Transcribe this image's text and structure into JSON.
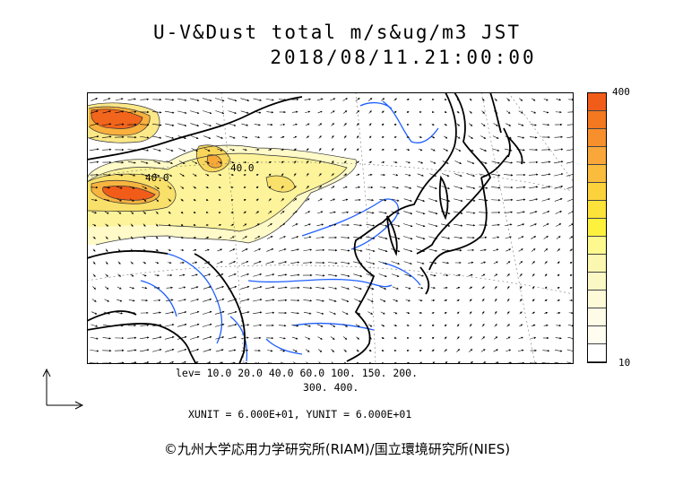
{
  "title": {
    "line1": "U-V&Dust total m/s&ug/m3 JST",
    "line2": "2018/08/11.21:00:00"
  },
  "colorbar": {
    "max_label": "400",
    "min_label": "10",
    "colors": [
      "#f25c19",
      "#f4781f",
      "#f78f2c",
      "#f9a63a",
      "#f9bc3c",
      "#fbd23b",
      "#fbe33a",
      "#fdf13e",
      "#fdf98f",
      "#fbf7b1",
      "#fbf8c6",
      "#fdfad8",
      "#fefce6",
      "#fffdf0",
      "#ffffff"
    ]
  },
  "contour_labels": [
    "40.0",
    "40.0"
  ],
  "levels": {
    "line1": "lev= 10.0 20.0 40.0 60.0 100. 150. 200.",
    "line2": "300. 400."
  },
  "units": "XUNIT = 6.000E+01, YUNIT = 6.000E+01",
  "credit": "©九州大学応用力学研究所(RIAM)/国立環境研究所(NIES)"
}
